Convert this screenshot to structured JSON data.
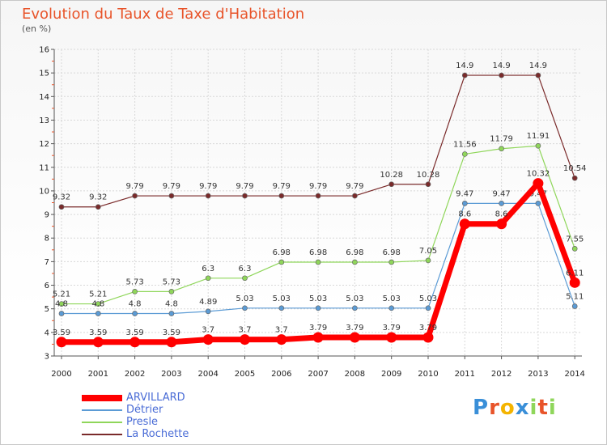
{
  "chart_data": {
    "type": "line",
    "title": "Evolution du Taux de Taxe d'Habitation",
    "subtitle": "(en %)",
    "categories": [
      "2000",
      "2001",
      "2002",
      "2003",
      "2004",
      "2005",
      "2006",
      "2007",
      "2008",
      "2009",
      "2010",
      "2011",
      "2012",
      "2013",
      "2014"
    ],
    "ylim": [
      3,
      16
    ],
    "yticks": [
      3,
      4,
      5,
      6,
      7,
      8,
      9,
      10,
      11,
      12,
      13,
      14,
      15,
      16
    ],
    "grid": true,
    "legend_position": "bottom-left",
    "series": [
      {
        "name": "ARVILLARD",
        "color": "#ff0000",
        "values": [
          3.59,
          3.59,
          3.59,
          3.59,
          3.7,
          3.7,
          3.7,
          3.79,
          3.79,
          3.79,
          3.79,
          8.6,
          8.6,
          10.32,
          6.11
        ],
        "labels": [
          "3.59",
          "3.59",
          "3.59",
          "3.59",
          "3.7",
          "3.7",
          "3.7",
          "3.79",
          "3.79",
          "3.79",
          "3.79",
          "8.6",
          "8.6",
          "10.32",
          "6.11"
        ]
      },
      {
        "name": "Détrier",
        "color": "#5b9bd5",
        "values": [
          4.8,
          4.8,
          4.8,
          4.8,
          4.89,
          5.03,
          5.03,
          5.03,
          5.03,
          5.03,
          5.03,
          9.47,
          9.47,
          9.47,
          5.11
        ],
        "labels": [
          "4.8",
          "4.8",
          "4.8",
          "4.8",
          "4.89",
          "5.03",
          "5.03",
          "5.03",
          "5.03",
          "5.03",
          "5.03",
          "9.47",
          "9.47",
          "9.47",
          "5.11"
        ]
      },
      {
        "name": "Presle",
        "color": "#8fd65a",
        "values": [
          5.21,
          5.21,
          5.73,
          5.73,
          6.3,
          6.3,
          6.98,
          6.98,
          6.98,
          6.98,
          7.05,
          11.56,
          11.79,
          11.91,
          7.55
        ],
        "labels": [
          "5.21",
          "5.21",
          "5.73",
          "5.73",
          "6.3",
          "6.3",
          "6.98",
          "6.98",
          "6.98",
          "6.98",
          "7.05",
          "11.56",
          "11.79",
          "11.91",
          "7.55"
        ]
      },
      {
        "name": "La Rochette",
        "color": "#7a2a2a",
        "values": [
          9.32,
          9.32,
          9.79,
          9.79,
          9.79,
          9.79,
          9.79,
          9.79,
          9.79,
          10.28,
          10.28,
          14.9,
          14.9,
          14.9,
          10.54
        ],
        "labels": [
          "9.32",
          "9.32",
          "9.79",
          "9.79",
          "9.79",
          "9.79",
          "9.79",
          "9.79",
          "9.79",
          "10.28",
          "10.28",
          "14.9",
          "14.9",
          "14.9",
          "10.54"
        ]
      }
    ]
  },
  "logo": {
    "text": "Proxiti",
    "letters": [
      "P",
      "r",
      "o",
      "x",
      "i",
      "t",
      "i"
    ],
    "colors": [
      "#3a8fd8",
      "#e8542a",
      "#f4b400",
      "#3a8fd8",
      "#8fd65a",
      "#e8542a",
      "#8fd65a"
    ]
  }
}
